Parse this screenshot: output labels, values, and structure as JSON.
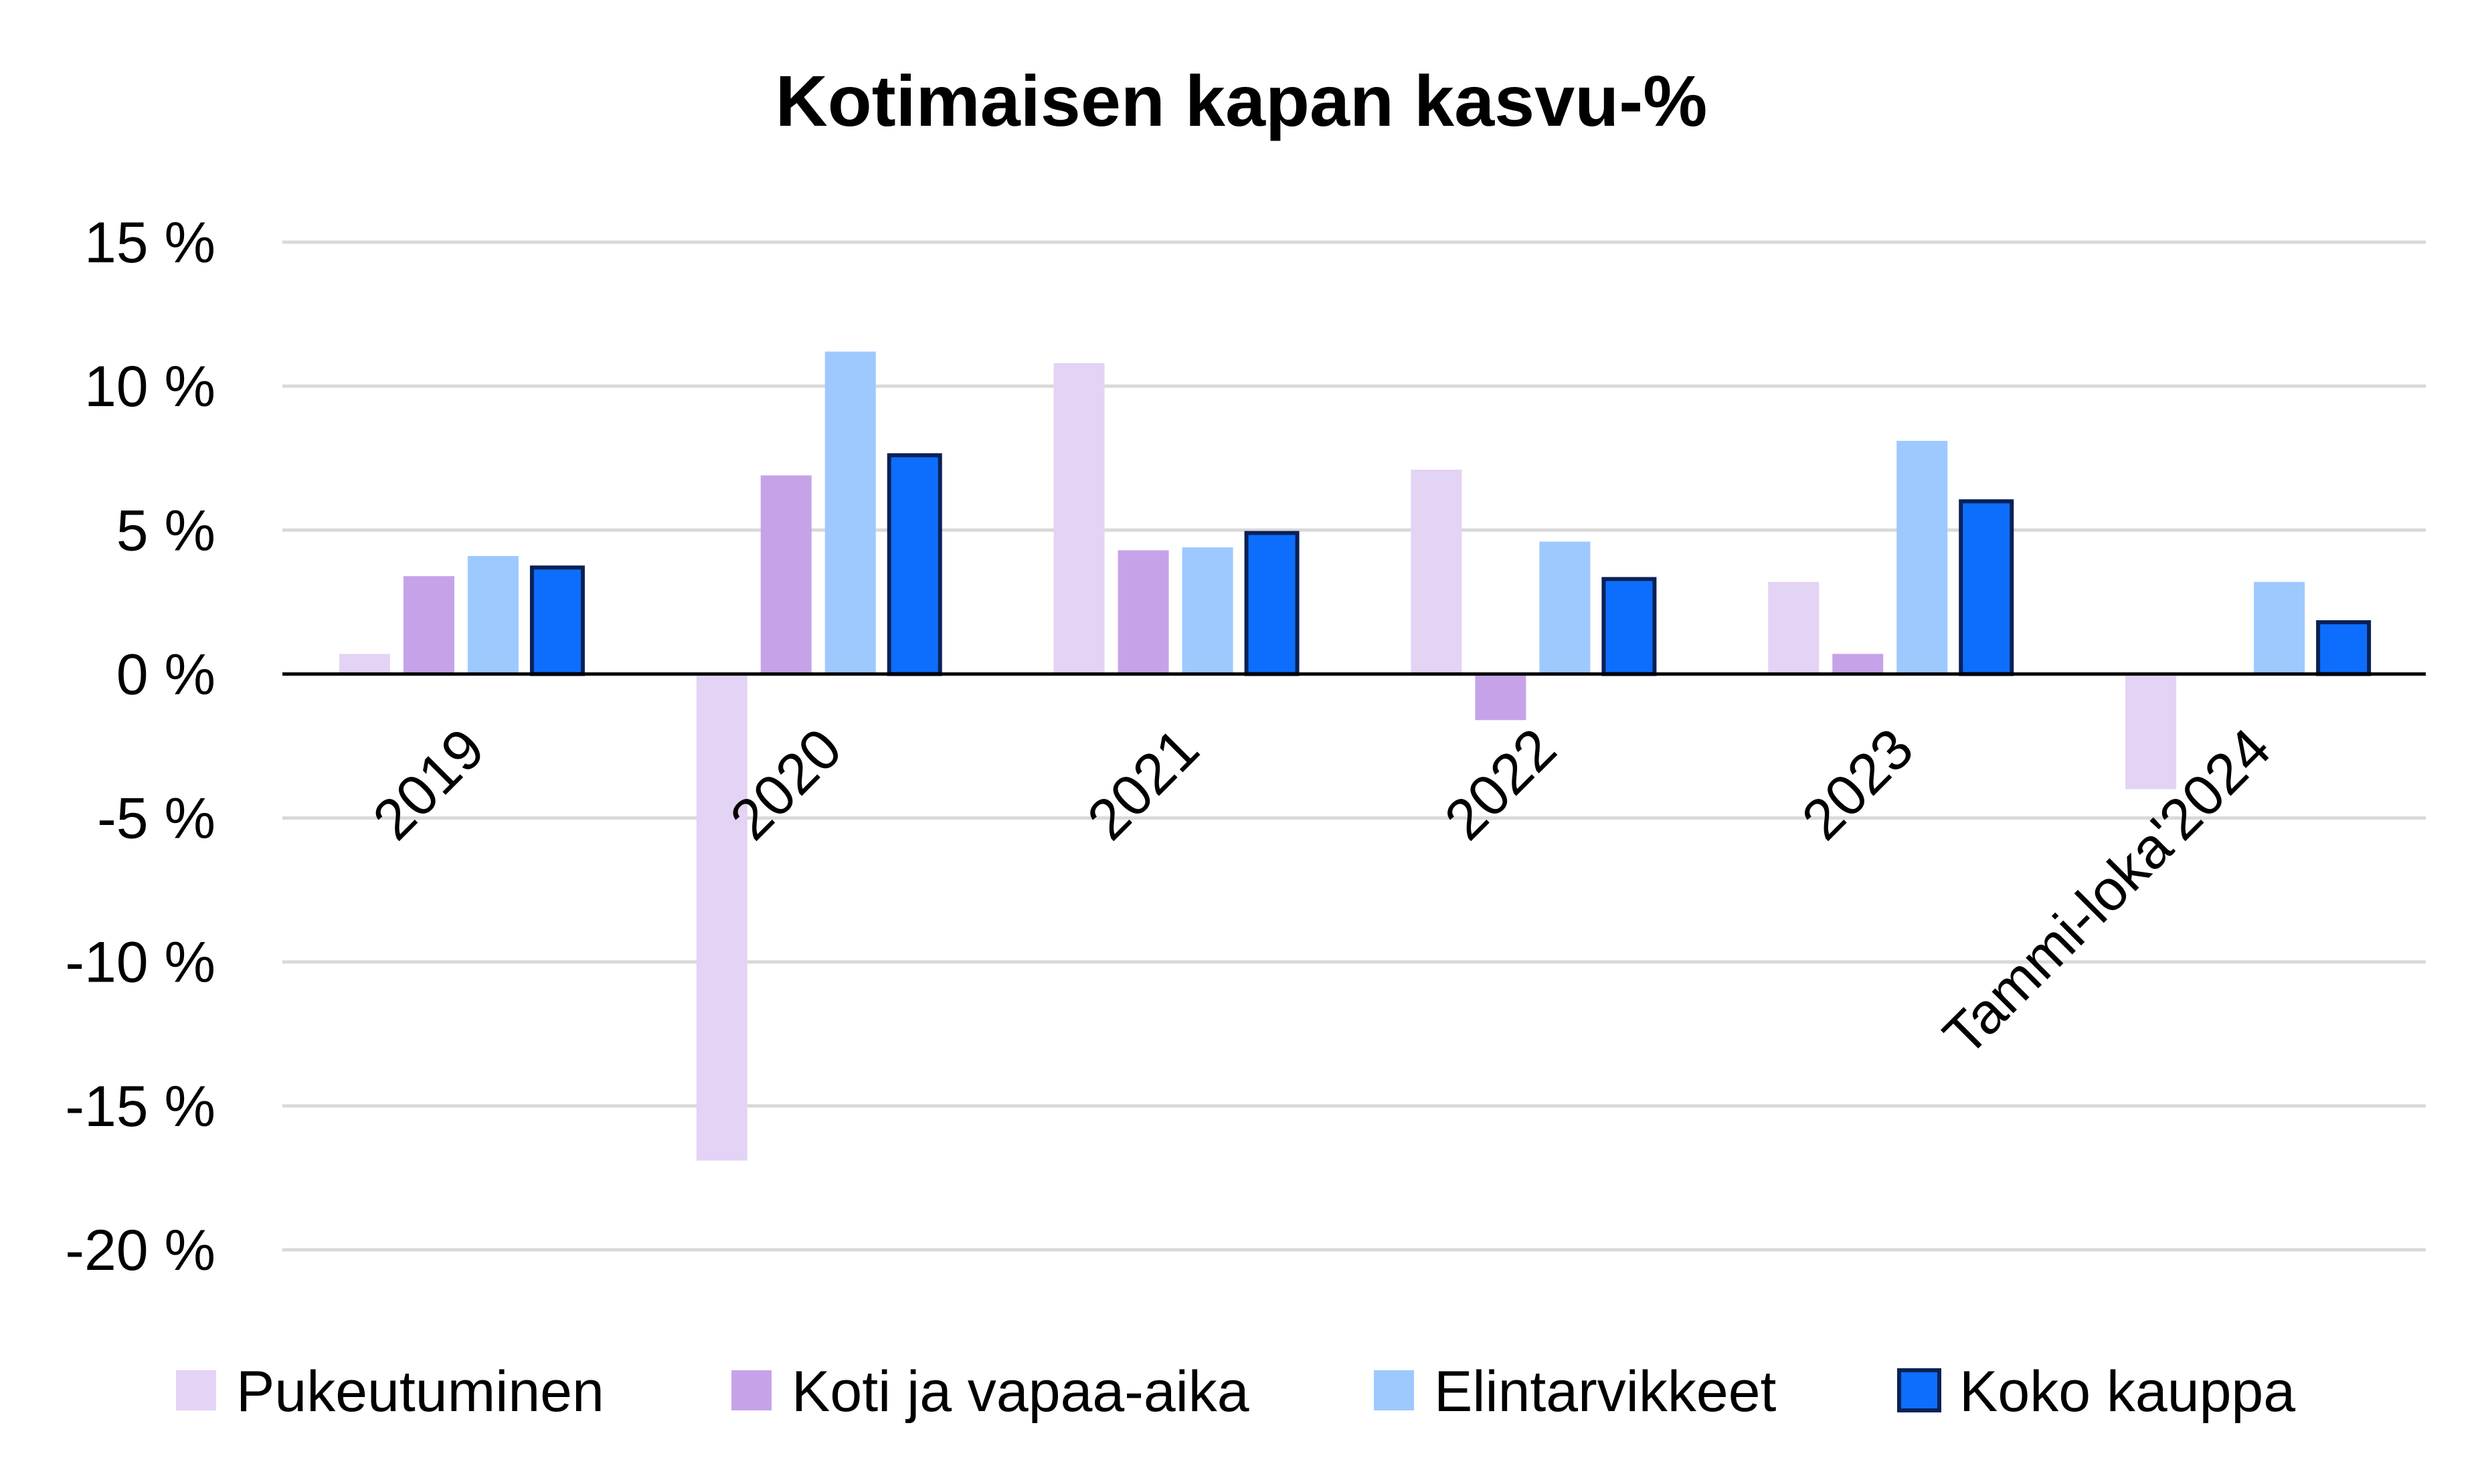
{
  "chart_data": {
    "type": "bar",
    "title": "Kotimaisen kapan kasvu-%",
    "xlabel": "",
    "ylabel": "",
    "categories": [
      "2019",
      "2020",
      "2021",
      "2022",
      "2023",
      "Tammi-loka'2024"
    ],
    "series": [
      {
        "name": "Pukeutuminen",
        "color": "#e3d3f4",
        "values": [
          0.7,
          -16.9,
          10.8,
          7.1,
          3.2,
          -4.0
        ]
      },
      {
        "name": "Koti ja vapaa-aika",
        "color": "#c6a3e8",
        "values": [
          3.4,
          6.9,
          4.3,
          -1.6,
          0.7,
          0.0
        ]
      },
      {
        "name": "Elintarvikkeet",
        "color": "#9ec9fe",
        "values": [
          4.1,
          11.2,
          4.4,
          4.6,
          8.1,
          3.2
        ]
      },
      {
        "name": "Koko kauppa",
        "color": "#0d6efd",
        "outline": "#0a2156",
        "values": [
          3.7,
          7.6,
          4.9,
          3.3,
          6.0,
          1.8
        ]
      }
    ],
    "yticks": [
      "15 %",
      "10 %",
      "5 %",
      "0 %",
      "-5 %",
      "-10 %",
      "-15 %",
      "-20 %"
    ],
    "ylim": [
      -20,
      15
    ],
    "grid": true,
    "legend": "bottom"
  }
}
